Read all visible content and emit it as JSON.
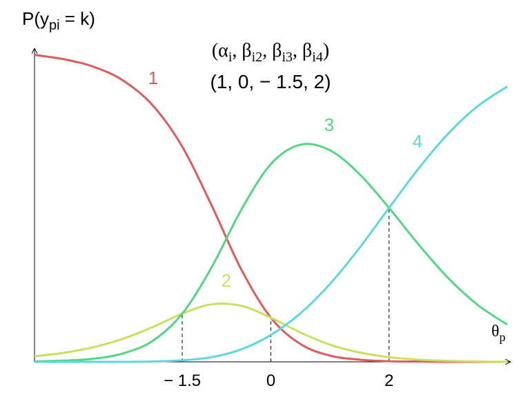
{
  "chart_data": {
    "type": "line",
    "y_label": [
      "P(y",
      "pi",
      " = k)"
    ],
    "parameter_label": [
      "(α",
      "i",
      ", β",
      "i2",
      ", β",
      "i3",
      ", β",
      "i4",
      ")"
    ],
    "parameter_values": "(1, 0, − 1.5, 2)",
    "x_label": [
      "θ",
      "p"
    ],
    "x": [
      -4,
      -3.5,
      -3,
      -2.5,
      -2,
      -1.5,
      -1,
      -0.5,
      0,
      0.5,
      1,
      1.5,
      2,
      2.5,
      3,
      3.5,
      4
    ],
    "xlim": [
      -4,
      4
    ],
    "ylim": [
      0,
      1
    ],
    "xticks": [
      {
        "value": -1.5,
        "label": "− 1.5"
      },
      0,
      2
    ],
    "series": [
      {
        "name": "1",
        "color": "#e05a5a",
        "values": [
          0.981,
          0.967,
          0.943,
          0.899,
          0.82,
          0.688,
          0.499,
          0.295,
          0.141,
          0.057,
          0.02,
          0.007,
          0.002,
          0.001,
          0.0,
          0.0,
          0.0
        ]
      },
      {
        "name": "2",
        "color": "#c8e05a",
        "values": [
          0.018,
          0.029,
          0.047,
          0.074,
          0.111,
          0.154,
          0.184,
          0.179,
          0.141,
          0.094,
          0.055,
          0.03,
          0.015,
          0.007,
          0.003,
          0.001,
          0.0
        ]
      },
      {
        "name": "3",
        "color": "#50d880",
        "values": [
          0.0015,
          0.004,
          0.01,
          0.027,
          0.067,
          0.154,
          0.303,
          0.486,
          0.632,
          0.694,
          0.676,
          0.6,
          0.492,
          0.375,
          0.268,
          0.182,
          0.119
        ]
      },
      {
        "name": "4",
        "color": "#5ad8e0",
        "values": [
          0.0,
          0.0,
          0.0,
          0.0,
          0.001,
          0.005,
          0.015,
          0.04,
          0.086,
          0.155,
          0.249,
          0.364,
          0.492,
          0.618,
          0.729,
          0.817,
          0.88
        ]
      }
    ]
  }
}
